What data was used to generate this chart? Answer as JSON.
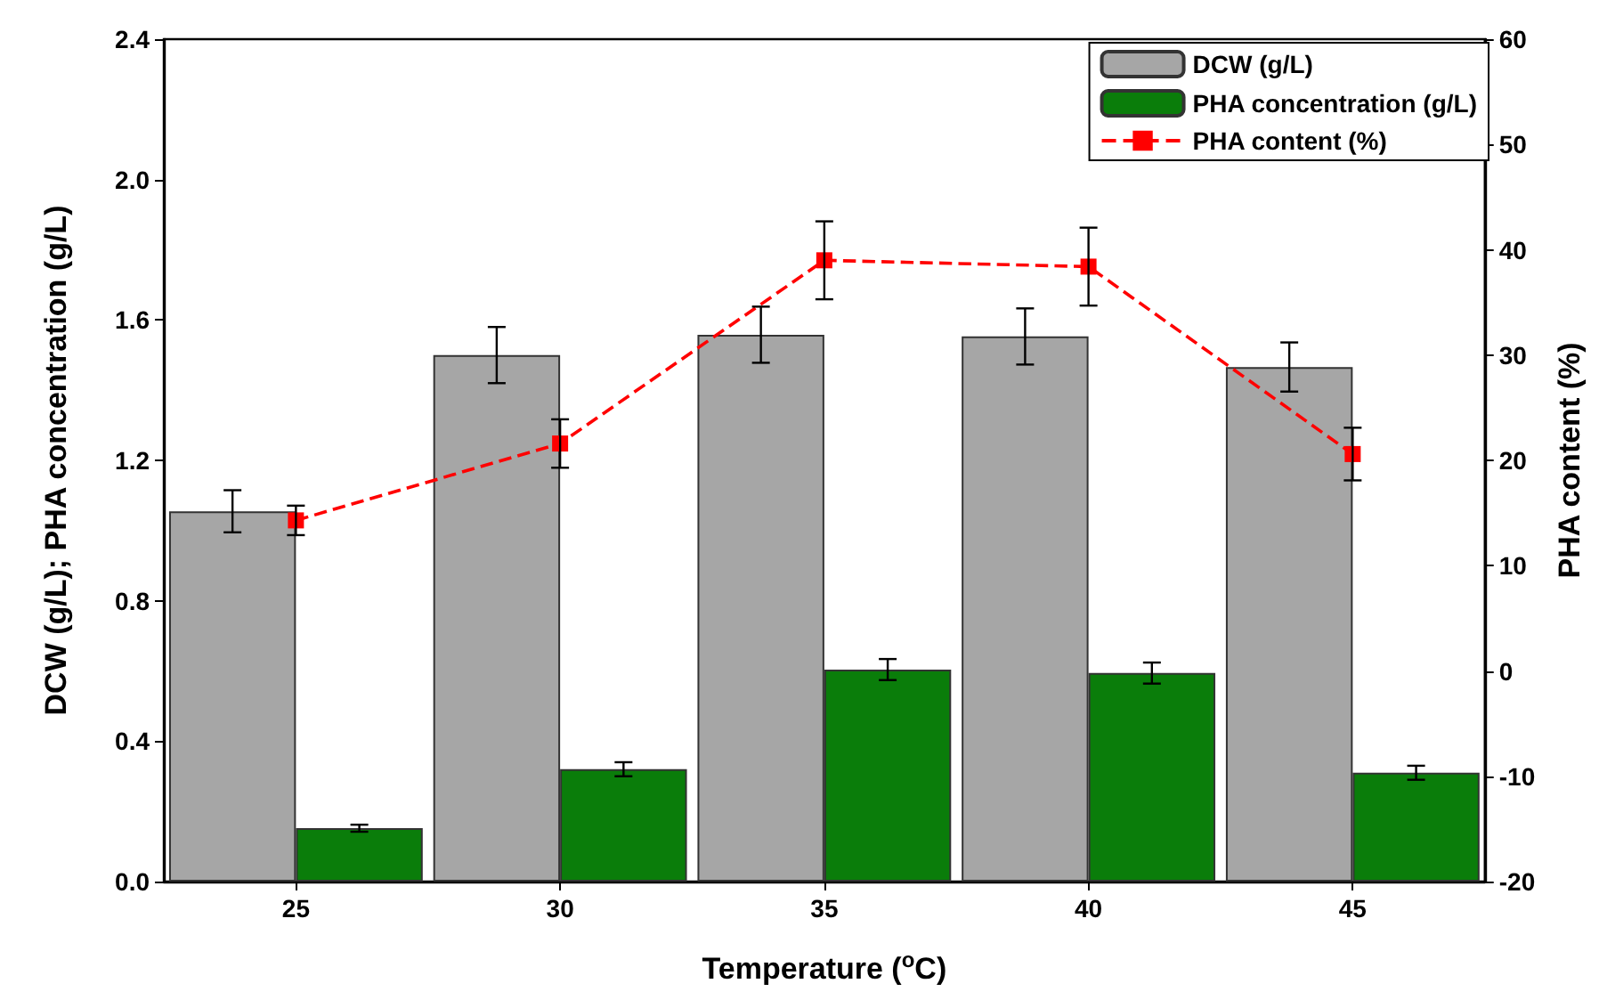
{
  "chart_data": {
    "type": "bar",
    "xlabel": "Temperature ($^{o}$C)",
    "ylabel": "DCW (g/L); PHA concentration (g/L)",
    "y2label": "PHA content (%)",
    "categories": [
      "25",
      "30",
      "35",
      "40",
      "45"
    ],
    "series": [
      {
        "name": "DCW (g/L)",
        "color": "#a6a6a6",
        "values": [
          1.055,
          1.5,
          1.558,
          1.553,
          1.466
        ],
        "errors": [
          0.06,
          0.08,
          0.08,
          0.08,
          0.07
        ]
      },
      {
        "name": "PHA concentration (g/L)",
        "color": "#0a7d0a",
        "values": [
          0.152,
          0.32,
          0.604,
          0.594,
          0.31
        ],
        "errors": [
          0.01,
          0.02,
          0.03,
          0.03,
          0.02
        ]
      },
      {
        "name": "PHA content (%)",
        "type": "line",
        "axis": "y2",
        "color": "#ff0000",
        "line_style": "dashed",
        "marker": "square",
        "values": [
          14.3,
          21.6,
          39.0,
          38.4,
          20.6
        ],
        "errors": [
          1.4,
          2.3,
          3.7,
          3.7,
          2.5
        ]
      }
    ],
    "ylim": [
      0,
      2.4
    ],
    "yticks": [
      {
        "value": 0,
        "label": "0.0"
      },
      {
        "value": 0.4,
        "label": "0.4"
      },
      {
        "value": 0.8,
        "label": "0.8"
      },
      {
        "value": 1.2,
        "label": "1.2"
      },
      {
        "value": 1.6,
        "label": "1.6"
      },
      {
        "value": 2.0,
        "label": "2.0"
      },
      {
        "value": 2.4,
        "label": "2.4"
      }
    ],
    "y2lim": [
      -20,
      60
    ],
    "y2ticks": [
      -20,
      -10,
      0,
      10,
      20,
      30,
      40,
      50,
      60
    ],
    "legend": "top right",
    "grid": false
  }
}
